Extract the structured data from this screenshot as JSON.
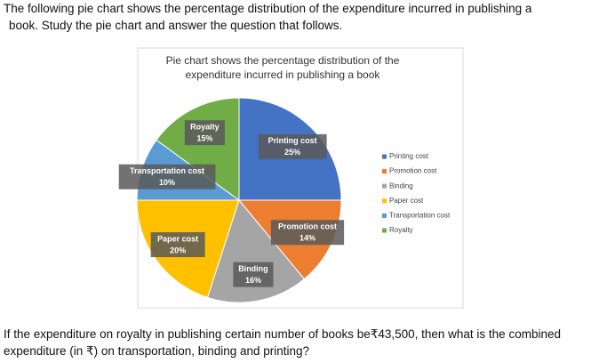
{
  "intro": [
    "The following pie chart shows the percentage distribution of the expenditure incurred in publishing a",
    "book. Study the pie chart and answer the question that follows."
  ],
  "chart_data": {
    "type": "pie",
    "title": [
      "Pie chart shows the percentage distribution of the",
      "expenditure incurred in publishing a book"
    ],
    "categories": [
      "Printing cost",
      "Promotion cost",
      "Binding",
      "Paper cost",
      "Transportation cost",
      "Royalty"
    ],
    "values": [
      25,
      14,
      16,
      20,
      10,
      15
    ],
    "value_labels": [
      "25%",
      "14%",
      "16%",
      "20%",
      "10%",
      "15%"
    ],
    "colors": [
      "#4472c4",
      "#ed7d31",
      "#a5a5a5",
      "#ffc000",
      "#5b9bd5",
      "#70ad47"
    ],
    "legend": "right"
  },
  "question": [
    "If the expenditure on royalty in publishing certain number of books be₹43,500, then what is the combined",
    "expenditure (in ₹) on transportation, binding and printing?"
  ]
}
